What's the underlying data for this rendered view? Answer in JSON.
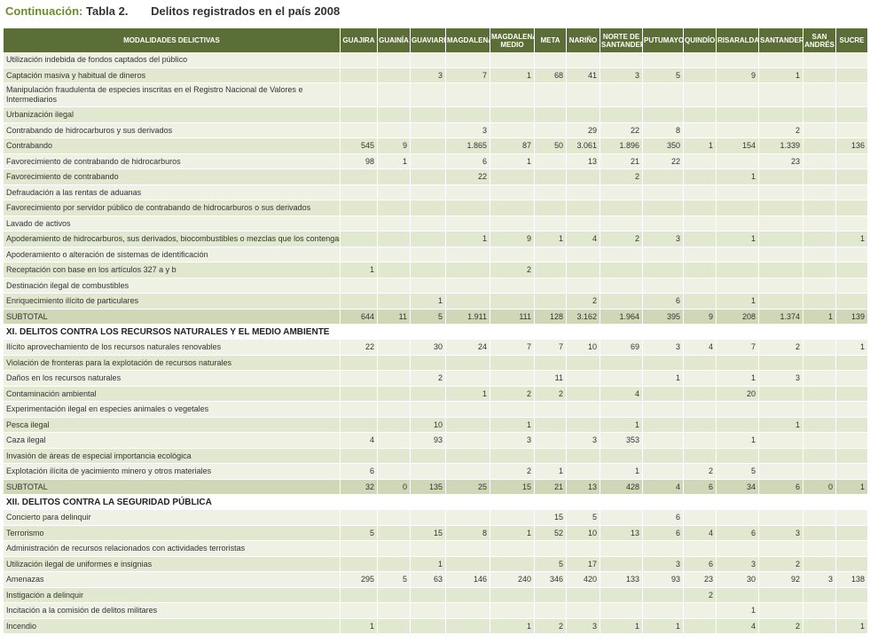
{
  "title": {
    "prefix": "Continuación:",
    "table": "Tabla 2.",
    "description": "Delitos registrados en el país 2008"
  },
  "columns": [
    "MODALIDADES DELICTIVAS",
    "GUAJIRA",
    "GUAINÍA",
    "GUAVIARE",
    "MAGDALENA",
    "MAGDALENA MEDIO",
    "META",
    "NARIÑO",
    "NORTE DE SANTANDER",
    "PUTUMAYO",
    "QUINDÍO",
    "RISARALDA",
    "SANTANDER",
    "SAN ANDRÉS",
    "SUCRE"
  ],
  "rows": [
    {
      "type": "data",
      "label": "Utilización indebida de fondos captados del público",
      "values": [
        "",
        "",
        "",
        "",
        "",
        "",
        "",
        "",
        "",
        "",
        "",
        "",
        "",
        ""
      ]
    },
    {
      "type": "data",
      "label": "Captación masiva y habitual de dineros",
      "values": [
        "",
        "",
        "3",
        "7",
        "1",
        "68",
        "41",
        "3",
        "5",
        "",
        "9",
        "1",
        "",
        ""
      ]
    },
    {
      "type": "tall",
      "label": "Manipulación fraudulenta de especies inscritas en el Registro Nacional de Valores e Intermediarios",
      "values": [
        "",
        "",
        "",
        "",
        "",
        "",
        "",
        "",
        "",
        "",
        "",
        "",
        "",
        ""
      ]
    },
    {
      "type": "data",
      "label": "Urbanización ilegal",
      "values": [
        "",
        "",
        "",
        "",
        "",
        "",
        "",
        "",
        "",
        "",
        "",
        "",
        "",
        ""
      ]
    },
    {
      "type": "data",
      "label": "Contrabando de hidrocarburos y sus derivados",
      "values": [
        "",
        "",
        "",
        "3",
        "",
        "",
        "29",
        "22",
        "8",
        "",
        "",
        "2",
        "",
        ""
      ]
    },
    {
      "type": "data",
      "label": "Contrabando",
      "values": [
        "545",
        "9",
        "",
        "1.865",
        "87",
        "50",
        "3.061",
        "1.896",
        "350",
        "1",
        "154",
        "1.339",
        "",
        "136"
      ]
    },
    {
      "type": "data",
      "label": "Favorecimiento de contrabando de hidrocarburos",
      "values": [
        "98",
        "1",
        "",
        "6",
        "1",
        "",
        "13",
        "21",
        "22",
        "",
        "",
        "23",
        "",
        ""
      ]
    },
    {
      "type": "data",
      "label": "Favorecimiento de contrabando",
      "values": [
        "",
        "",
        "",
        "22",
        "",
        "",
        "",
        "2",
        "",
        "",
        "1",
        "",
        "",
        ""
      ]
    },
    {
      "type": "data",
      "label": "Defraudación a las rentas de aduanas",
      "values": [
        "",
        "",
        "",
        "",
        "",
        "",
        "",
        "",
        "",
        "",
        "",
        "",
        "",
        ""
      ]
    },
    {
      "type": "data",
      "label": "Favorecimiento por servidor público de contrabando de hidrocarburos o sus derivados",
      "values": [
        "",
        "",
        "",
        "",
        "",
        "",
        "",
        "",
        "",
        "",
        "",
        "",
        "",
        ""
      ]
    },
    {
      "type": "data",
      "label": "Lavado de activos",
      "values": [
        "",
        "",
        "",
        "",
        "",
        "",
        "",
        "",
        "",
        "",
        "",
        "",
        "",
        ""
      ]
    },
    {
      "type": "data",
      "label": "Apoderamiento de hidrocarburos, sus derivados, biocombustibles o mezclas que los contengan",
      "values": [
        "",
        "",
        "",
        "1",
        "9",
        "1",
        "4",
        "2",
        "3",
        "",
        "1",
        "",
        "",
        "1"
      ]
    },
    {
      "type": "data",
      "label": "Apoderamiento o alteración de sistemas de identificación",
      "values": [
        "",
        "",
        "",
        "",
        "",
        "",
        "",
        "",
        "",
        "",
        "",
        "",
        "",
        ""
      ]
    },
    {
      "type": "data",
      "label": "Receptación con base en los artículos 327 a y b",
      "values": [
        "1",
        "",
        "",
        "",
        "2",
        "",
        "",
        "",
        "",
        "",
        "",
        "",
        "",
        ""
      ]
    },
    {
      "type": "data",
      "label": "Destinación ilegal de combustibles",
      "values": [
        "",
        "",
        "",
        "",
        "",
        "",
        "",
        "",
        "",
        "",
        "",
        "",
        "",
        ""
      ]
    },
    {
      "type": "data",
      "label": "Enriquecimiento ilícito de particulares",
      "values": [
        "",
        "",
        "1",
        "",
        "",
        "",
        "2",
        "",
        "6",
        "",
        "1",
        "",
        "",
        ""
      ]
    },
    {
      "type": "subtotal",
      "label": "SUBTOTAL",
      "values": [
        "644",
        "11",
        "5",
        "1.911",
        "111",
        "128",
        "3.162",
        "1.964",
        "395",
        "9",
        "208",
        "1.374",
        "1",
        "139"
      ]
    },
    {
      "type": "section",
      "label": "XI. DELITOS CONTRA LOS RECURSOS NATURALES Y EL MEDIO AMBIENTE"
    },
    {
      "type": "data",
      "label": "Ilícito aprovechamiento de los recursos naturales renovables",
      "values": [
        "22",
        "",
        "30",
        "24",
        "7",
        "7",
        "10",
        "69",
        "3",
        "4",
        "7",
        "2",
        "",
        "1"
      ]
    },
    {
      "type": "data",
      "label": "Violación de fronteras para la explotación de recursos naturales",
      "values": [
        "",
        "",
        "",
        "",
        "",
        "",
        "",
        "",
        "",
        "",
        "",
        "",
        "",
        ""
      ]
    },
    {
      "type": "data",
      "label": "Daños en los recursos naturales",
      "values": [
        "",
        "",
        "2",
        "",
        "",
        "11",
        "",
        "",
        "1",
        "",
        "1",
        "3",
        "",
        ""
      ]
    },
    {
      "type": "data",
      "label": "Contaminación ambiental",
      "values": [
        "",
        "",
        "",
        "1",
        "2",
        "2",
        "",
        "4",
        "",
        "",
        "20",
        "",
        "",
        ""
      ]
    },
    {
      "type": "data",
      "label": "Experimentación ilegal en especies animales o vegetales",
      "values": [
        "",
        "",
        "",
        "",
        "",
        "",
        "",
        "",
        "",
        "",
        "",
        "",
        "",
        ""
      ]
    },
    {
      "type": "data",
      "label": "Pesca ilegal",
      "values": [
        "",
        "",
        "10",
        "",
        "1",
        "",
        "",
        "1",
        "",
        "",
        "",
        "1",
        "",
        ""
      ]
    },
    {
      "type": "data",
      "label": "Caza ilegal",
      "values": [
        "4",
        "",
        "93",
        "",
        "3",
        "",
        "3",
        "353",
        "",
        "",
        "1",
        "",
        "",
        ""
      ]
    },
    {
      "type": "data",
      "label": "Invasión de áreas de especial importancia ecológica",
      "values": [
        "",
        "",
        "",
        "",
        "",
        "",
        "",
        "",
        "",
        "",
        "",
        "",
        "",
        ""
      ]
    },
    {
      "type": "data",
      "label": "Explotación ilícita de yacimiento minero y otros materiales",
      "values": [
        "6",
        "",
        "",
        "",
        "2",
        "1",
        "",
        "1",
        "",
        "2",
        "5",
        "",
        "",
        ""
      ]
    },
    {
      "type": "subtotal",
      "label": "SUBTOTAL",
      "values": [
        "32",
        "0",
        "135",
        "25",
        "15",
        "21",
        "13",
        "428",
        "4",
        "6",
        "34",
        "6",
        "0",
        "1"
      ]
    },
    {
      "type": "section",
      "label": "XII. DELITOS CONTRA LA SEGURIDAD PÚBLICA"
    },
    {
      "type": "data",
      "label": "Concierto para delinquir",
      "values": [
        "",
        "",
        "",
        "",
        "",
        "15",
        "5",
        "",
        "6",
        "",
        "",
        "",
        "",
        ""
      ]
    },
    {
      "type": "data",
      "label": "Terrorismo",
      "values": [
        "5",
        "",
        "15",
        "8",
        "1",
        "52",
        "10",
        "13",
        "6",
        "4",
        "6",
        "3",
        "",
        ""
      ]
    },
    {
      "type": "data",
      "label": "Administración de recursos relacionados con actividades terroristas",
      "values": [
        "",
        "",
        "",
        "",
        "",
        "",
        "",
        "",
        "",
        "",
        "",
        "",
        "",
        ""
      ]
    },
    {
      "type": "data",
      "label": "Utilización ilegal de uniformes e insignias",
      "values": [
        "",
        "",
        "1",
        "",
        "",
        "5",
        "17",
        "",
        "3",
        "6",
        "3",
        "2",
        "",
        ""
      ]
    },
    {
      "type": "data",
      "label": "Amenazas",
      "values": [
        "295",
        "5",
        "63",
        "146",
        "240",
        "346",
        "420",
        "133",
        "93",
        "23",
        "30",
        "92",
        "3",
        "138"
      ]
    },
    {
      "type": "data",
      "label": "Instigación a delinquir",
      "values": [
        "",
        "",
        "",
        "",
        "",
        "",
        "",
        "",
        "",
        "2",
        "",
        "",
        "",
        ""
      ]
    },
    {
      "type": "data",
      "label": "Incitación a la comisión de delitos militares",
      "values": [
        "",
        "",
        "",
        "",
        "",
        "",
        "",
        "",
        "",
        "",
        "1",
        "",
        "",
        ""
      ]
    },
    {
      "type": "data",
      "label": "Incendio",
      "values": [
        "1",
        "",
        "",
        "",
        "1",
        "2",
        "3",
        "1",
        "1",
        "",
        "4",
        "2",
        "",
        "1"
      ]
    }
  ]
}
